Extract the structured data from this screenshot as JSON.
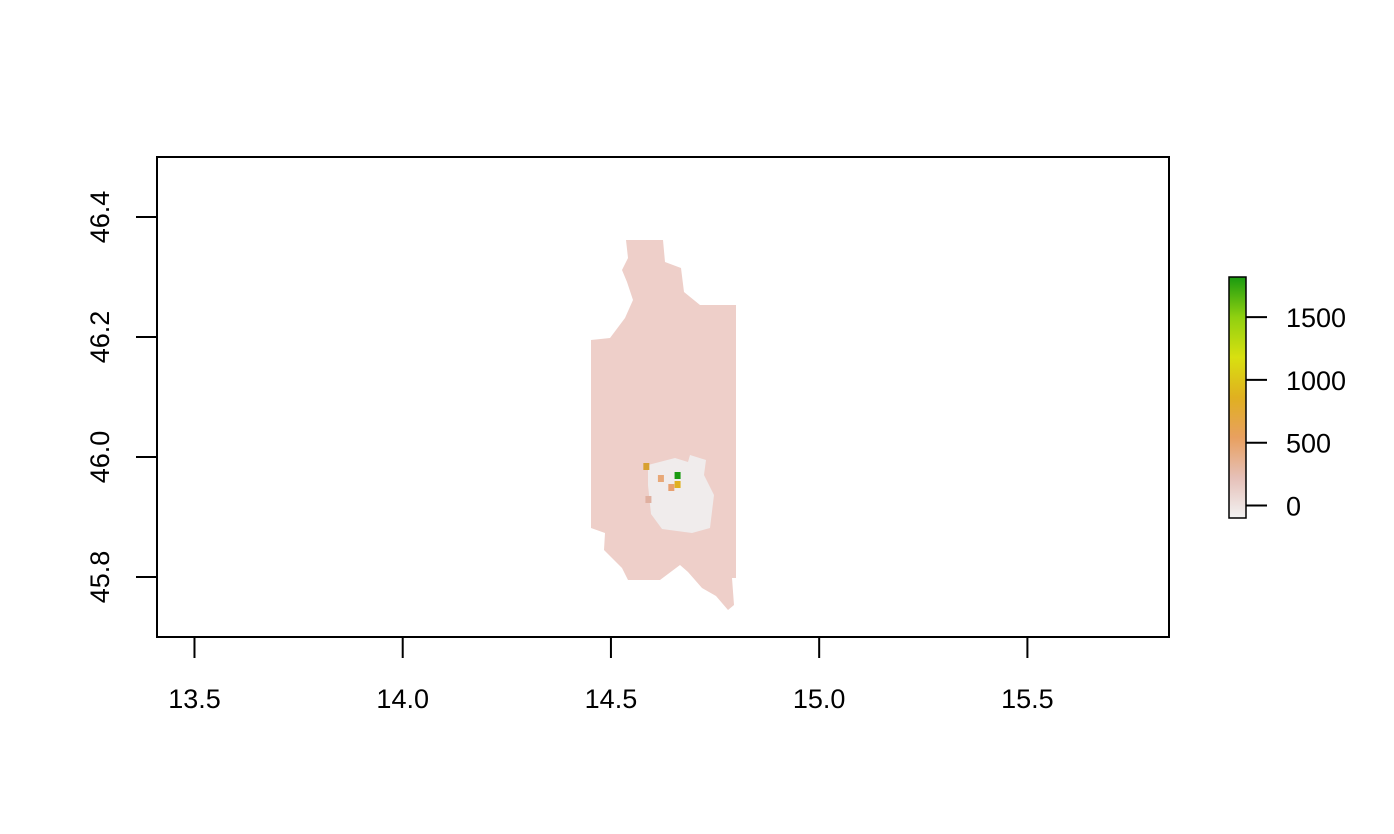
{
  "chart_data": {
    "type": "heatmap",
    "title": "",
    "xlabel": "",
    "ylabel": "",
    "xlim": [
      13.41,
      15.84
    ],
    "ylim": [
      45.7,
      46.5
    ],
    "x_ticks": [
      "13.5",
      "14.0",
      "14.5",
      "15.0",
      "15.5"
    ],
    "y_ticks": [
      "45.8",
      "46.0",
      "46.2",
      "46.4"
    ],
    "grid": false,
    "legend": {
      "type": "colorbar",
      "placement": "right",
      "range": [
        -100,
        1820
      ],
      "ticks": [
        "0",
        "500",
        "1000",
        "1500"
      ],
      "colors": [
        "#f2f2f2",
        "#e6c0b8",
        "#e8a060",
        "#e0b020",
        "#d8e010",
        "#90d010",
        "#1a9a10"
      ]
    },
    "raster": {
      "base_value": 0,
      "base_color": "#eecfc9",
      "low_color": "#f0ecec",
      "extent": {
        "lon": [
          14.45,
          14.8
        ],
        "lat": [
          45.745,
          46.365
        ]
      },
      "hotspots": [
        {
          "lon": 14.66,
          "lat": 45.97,
          "value": 1800,
          "color": "#1a9a10"
        },
        {
          "lon": 14.66,
          "lat": 45.955,
          "value": 700,
          "color": "#e0b020"
        },
        {
          "lon": 14.585,
          "lat": 45.985,
          "value": 600,
          "color": "#d8a030"
        },
        {
          "lon": 14.62,
          "lat": 45.965,
          "value": 400,
          "color": "#e8a878"
        },
        {
          "lon": 14.645,
          "lat": 45.95,
          "value": 400,
          "color": "#e8a070"
        },
        {
          "lon": 14.59,
          "lat": 45.93,
          "value": 300,
          "color": "#e0b0a0"
        }
      ]
    }
  }
}
